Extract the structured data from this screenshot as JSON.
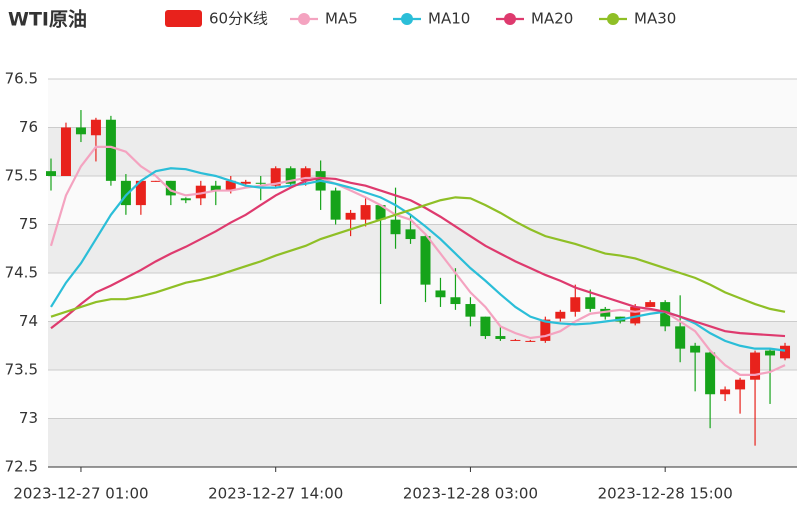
{
  "chart_data": {
    "type": "candlestick",
    "title": "WTI原油",
    "categories": [
      null,
      null,
      "2023-12-27 01:00",
      null,
      null,
      null,
      null,
      null,
      null,
      null,
      null,
      null,
      null,
      null,
      null,
      "2023-12-27 14:00",
      null,
      null,
      null,
      null,
      null,
      null,
      null,
      null,
      null,
      null,
      null,
      null,
      "2023-12-28 03:00",
      null,
      null,
      null,
      null,
      null,
      null,
      null,
      null,
      null,
      null,
      null,
      null,
      "2023-12-28 15:00",
      null,
      null,
      null,
      null,
      null,
      null,
      null,
      null
    ],
    "candles": {
      "name": "60分K线",
      "up_color": "#e8221c",
      "down_color": "#16a31a",
      "open": [
        75.55,
        75.5,
        76.0,
        75.92,
        76.08,
        75.45,
        75.2,
        75.44,
        75.45,
        75.27,
        75.27,
        75.4,
        75.35,
        75.42,
        75.43,
        75.4,
        75.58,
        75.45,
        75.55,
        75.35,
        75.05,
        75.05,
        75.2,
        75.05,
        74.95,
        74.88,
        74.32,
        74.25,
        74.18,
        74.05,
        73.85,
        73.81,
        73.8,
        73.8,
        74.03,
        74.1,
        74.25,
        74.13,
        74.05,
        73.98,
        74.15,
        74.2,
        73.95,
        73.75,
        73.68,
        73.25,
        73.3,
        73.4,
        73.7,
        73.62
      ],
      "close": [
        75.5,
        76.0,
        75.93,
        76.08,
        75.45,
        75.2,
        75.45,
        75.45,
        75.3,
        75.25,
        75.4,
        75.35,
        75.45,
        75.44,
        75.42,
        75.58,
        75.42,
        75.58,
        75.35,
        75.05,
        75.12,
        75.2,
        75.05,
        74.9,
        74.85,
        74.38,
        74.25,
        74.18,
        74.05,
        73.85,
        73.82,
        73.81,
        73.8,
        74.02,
        74.1,
        74.25,
        74.13,
        74.05,
        74.0,
        74.15,
        74.2,
        73.95,
        73.72,
        73.68,
        73.25,
        73.3,
        73.4,
        73.68,
        73.65,
        73.75
      ],
      "high": [
        75.68,
        76.05,
        76.18,
        76.1,
        76.12,
        75.52,
        75.45,
        75.45,
        75.45,
        75.28,
        75.45,
        75.45,
        75.5,
        75.46,
        75.5,
        75.6,
        75.6,
        75.6,
        75.66,
        75.38,
        75.15,
        75.28,
        75.2,
        75.38,
        75.1,
        74.9,
        74.45,
        74.55,
        74.25,
        74.05,
        73.95,
        73.82,
        73.81,
        74.05,
        74.12,
        74.38,
        74.33,
        74.15,
        74.05,
        74.18,
        74.22,
        74.22,
        74.27,
        73.78,
        73.7,
        73.33,
        73.42,
        73.7,
        73.72,
        73.78
      ],
      "low": [
        75.35,
        75.5,
        75.85,
        75.65,
        75.4,
        75.1,
        75.1,
        75.44,
        75.2,
        75.22,
        75.2,
        75.2,
        75.32,
        75.4,
        75.25,
        75.38,
        75.4,
        75.4,
        75.15,
        75.0,
        74.88,
        74.98,
        74.18,
        74.75,
        74.8,
        74.2,
        74.15,
        74.12,
        73.95,
        73.82,
        73.8,
        73.8,
        73.79,
        73.78,
        74.0,
        74.05,
        74.1,
        74.02,
        73.98,
        73.96,
        74.15,
        73.9,
        73.58,
        73.28,
        72.9,
        73.18,
        73.05,
        72.72,
        73.15,
        73.6
      ]
    },
    "series": [
      {
        "name": "MA5",
        "color": "#f4a3c0",
        "values": [
          74.78,
          75.3,
          75.6,
          75.8,
          75.8,
          75.75,
          75.6,
          75.5,
          75.35,
          75.3,
          75.32,
          75.35,
          75.35,
          75.38,
          75.4,
          75.42,
          75.45,
          75.48,
          75.48,
          75.42,
          75.35,
          75.28,
          75.2,
          75.1,
          75.05,
          74.9,
          74.7,
          74.5,
          74.3,
          74.15,
          73.95,
          73.88,
          73.83,
          73.85,
          73.9,
          74.0,
          74.08,
          74.1,
          74.12,
          74.1,
          74.12,
          74.1,
          74.0,
          73.9,
          73.7,
          73.55,
          73.45,
          73.45,
          73.48,
          73.55
        ]
      },
      {
        "name": "MA10",
        "color": "#2bbed8",
        "values": [
          74.15,
          74.4,
          74.6,
          74.85,
          75.1,
          75.3,
          75.45,
          75.55,
          75.58,
          75.57,
          75.53,
          75.5,
          75.45,
          75.4,
          75.38,
          75.38,
          75.4,
          75.42,
          75.45,
          75.42,
          75.38,
          75.33,
          75.28,
          75.2,
          75.1,
          74.98,
          74.85,
          74.7,
          74.55,
          74.42,
          74.28,
          74.15,
          74.05,
          74.0,
          73.98,
          73.97,
          73.98,
          74.0,
          74.02,
          74.05,
          74.08,
          74.1,
          74.05,
          73.98,
          73.88,
          73.8,
          73.75,
          73.72,
          73.72,
          73.7
        ]
      },
      {
        "name": "MA20",
        "color": "#de3a6e",
        "values": [
          73.93,
          74.05,
          74.18,
          74.3,
          74.37,
          74.45,
          74.53,
          74.62,
          74.7,
          74.77,
          74.85,
          74.93,
          75.02,
          75.1,
          75.2,
          75.3,
          75.38,
          75.45,
          75.48,
          75.47,
          75.43,
          75.4,
          75.35,
          75.3,
          75.25,
          75.17,
          75.08,
          74.98,
          74.88,
          74.78,
          74.7,
          74.62,
          74.55,
          74.48,
          74.42,
          74.35,
          74.3,
          74.25,
          74.2,
          74.15,
          74.13,
          74.1,
          74.05,
          74.0,
          73.95,
          73.9,
          73.88,
          73.87,
          73.86,
          73.85
        ]
      },
      {
        "name": "MA30",
        "color": "#8fbf26",
        "values": [
          74.05,
          74.1,
          74.15,
          74.2,
          74.23,
          74.23,
          74.26,
          74.3,
          74.35,
          74.4,
          74.43,
          74.47,
          74.52,
          74.57,
          74.62,
          74.68,
          74.73,
          74.78,
          74.85,
          74.9,
          74.95,
          75.0,
          75.05,
          75.1,
          75.15,
          75.2,
          75.25,
          75.28,
          75.27,
          75.2,
          75.12,
          75.03,
          74.95,
          74.88,
          74.84,
          74.8,
          74.75,
          74.7,
          74.68,
          74.65,
          74.6,
          74.55,
          74.5,
          74.45,
          74.38,
          74.3,
          74.24,
          74.18,
          74.13,
          74.1
        ]
      }
    ],
    "ylim": [
      72.5,
      76.5
    ],
    "yticks": [
      72.5,
      73,
      73.5,
      74,
      74.5,
      75,
      75.5,
      76,
      76.5
    ],
    "grid": true
  }
}
